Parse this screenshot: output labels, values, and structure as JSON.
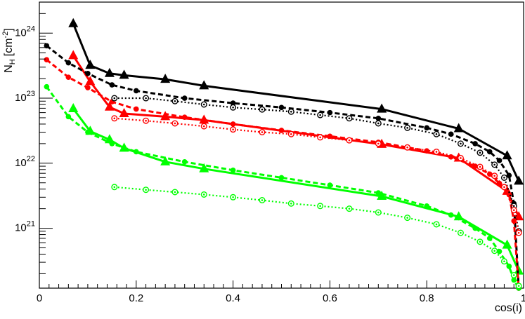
{
  "chart_data": {
    "type": "line",
    "xlabel": "cos(i)",
    "ylabel_main": "N",
    "ylabel_sub": "H",
    "ylabel_unit_pre": "[cm",
    "ylabel_unit_exp": "-2",
    "ylabel_unit_post": "]",
    "xlim": [
      0,
      1.0
    ],
    "ylim": [
      1.2e+20,
      3e+24
    ],
    "yscale": "log",
    "grid": false,
    "x_ticks": [
      {
        "value": 0,
        "label": "0"
      },
      {
        "value": 0.2,
        "label": "0.2"
      },
      {
        "value": 0.4,
        "label": "0.4"
      },
      {
        "value": 0.6,
        "label": "0.6"
      },
      {
        "value": 0.8,
        "label": "0.8"
      },
      {
        "value": 1.0,
        "label": "1"
      }
    ],
    "y_ticks": [
      {
        "value": 1e+21,
        "base": "10",
        "exp": "21"
      },
      {
        "value": 1e+22,
        "base": "10",
        "exp": "22"
      },
      {
        "value": 1e+23,
        "base": "10",
        "exp": "23"
      },
      {
        "value": 1e+24,
        "base": "10",
        "exp": "24"
      }
    ],
    "series": [
      {
        "color": "#000000",
        "line": "solid",
        "marker": "triangle",
        "x": [
          0.07,
          0.105,
          0.145,
          0.175,
          0.26,
          0.34,
          0.707,
          0.866,
          0.966,
          0.99
        ],
        "y": [
          1.4e+24,
          3.2e+23,
          2.4e+23,
          2.25e+23,
          1.95e+23,
          1.55e+23,
          6.8e+22,
          3.4e+22,
          1.3e+22,
          5.3e+21
        ]
      },
      {
        "color": "#ff0000",
        "line": "solid",
        "marker": "triangle",
        "x": [
          0.07,
          0.105,
          0.145,
          0.175,
          0.26,
          0.34,
          0.707,
          0.866,
          0.966,
          0.99
        ],
        "y": [
          4.5e+23,
          1.8e+23,
          7.3e+22,
          5.8e+22,
          5.2e+22,
          4.6e+22,
          1.95e+22,
          1.2e+22,
          3.7e+21,
          1.5e+21
        ]
      },
      {
        "color": "#00ff00",
        "line": "solid",
        "marker": "triangle",
        "x": [
          0.07,
          0.105,
          0.145,
          0.175,
          0.26,
          0.34,
          0.707,
          0.866,
          0.966,
          0.99
        ],
        "y": [
          6.9e+22,
          3.1e+22,
          2.3e+22,
          1.7e+22,
          1.05e+22,
          8.2e+21,
          3.1e+21,
          1.5e+21,
          5.5e+20,
          2.2e+20
        ]
      },
      {
        "color": "#000000",
        "line": "dashed",
        "marker": "dot",
        "x": [
          0.015,
          0.06,
          0.1,
          0.15,
          0.2,
          0.3,
          0.4,
          0.5,
          0.6,
          0.7,
          0.8,
          0.85,
          0.9,
          0.93,
          0.95,
          0.97,
          0.98,
          0.99
        ],
        "y": [
          6.4e+23,
          3.5e+23,
          2.4e+23,
          1.6e+23,
          1.3e+23,
          1e+23,
          8.4e+22,
          7.2e+22,
          6e+22,
          4.9e+22,
          3.5e+22,
          2.8e+22,
          2e+22,
          1.5e+22,
          1.1e+22,
          6.5e+21,
          2.4e+21,
          1.2e+20
        ]
      },
      {
        "color": "#ff0000",
        "line": "dashed",
        "marker": "dot",
        "x": [
          0.015,
          0.06,
          0.1,
          0.15,
          0.2,
          0.3,
          0.4,
          0.5,
          0.6,
          0.7,
          0.8,
          0.85,
          0.9,
          0.93,
          0.95,
          0.97,
          0.98,
          0.99
        ],
        "y": [
          3.9e+23,
          2.1e+23,
          1.45e+23,
          8.8e+22,
          6.8e+22,
          5.1e+22,
          4e+22,
          3.2e+22,
          2.6e+22,
          2.1e+22,
          1.55e+22,
          1.25e+22,
          9e+21,
          6.8e+21,
          4.9e+21,
          3.3e+21,
          1.3e+21,
          1.2e+20
        ]
      },
      {
        "color": "#00ff00",
        "line": "dashed",
        "marker": "dot",
        "x": [
          0.015,
          0.06,
          0.1,
          0.15,
          0.2,
          0.3,
          0.4,
          0.5,
          0.6,
          0.7,
          0.8,
          0.85,
          0.9,
          0.93,
          0.95,
          0.97,
          0.98,
          0.99
        ],
        "y": [
          1.5e+23,
          5.2e+22,
          3e+22,
          2e+22,
          1.5e+22,
          1.05e+22,
          7.8e+21,
          6e+21,
          4.6e+21,
          3.5e+21,
          2.2e+21,
          1.6e+21,
          1e+21,
          7e+20,
          4.4e+20,
          2.6e+20,
          1.6e+20,
          1.2e+20
        ]
      },
      {
        "color": "#000000",
        "line": "dotted",
        "marker": "open-circle",
        "x": [
          0.155,
          0.22,
          0.28,
          0.34,
          0.4,
          0.46,
          0.52,
          0.58,
          0.64,
          0.7,
          0.76,
          0.82,
          0.87,
          0.91,
          0.94,
          0.96,
          0.98,
          0.99
        ],
        "y": [
          1e+23,
          1e+23,
          9e+22,
          8e+22,
          7.2e+22,
          6.7e+22,
          6.2e+22,
          5.5e+22,
          4.9e+22,
          4.1e+22,
          3.5e+22,
          2.8e+22,
          2e+22,
          1.45e+22,
          9.5e+21,
          6e+21,
          2.2e+21,
          9e+20
        ]
      },
      {
        "color": "#ff0000",
        "line": "dotted",
        "marker": "open-circle",
        "x": [
          0.155,
          0.22,
          0.28,
          0.34,
          0.4,
          0.46,
          0.52,
          0.58,
          0.64,
          0.7,
          0.76,
          0.82,
          0.87,
          0.91,
          0.94,
          0.96,
          0.98,
          0.99
        ],
        "y": [
          4.9e+22,
          4.5e+22,
          4.1e+22,
          3.7e+22,
          3.3e+22,
          3e+22,
          2.8e+22,
          2.5e+22,
          2.25e+22,
          2e+22,
          1.75e+22,
          1.5e+22,
          1.2e+22,
          8.8e+21,
          6.4e+21,
          4.3e+21,
          1.9e+21,
          8.5e+20
        ]
      },
      {
        "color": "#00ff00",
        "line": "dotted",
        "marker": "open-circle",
        "x": [
          0.155,
          0.22,
          0.28,
          0.34,
          0.4,
          0.46,
          0.52,
          0.58,
          0.64,
          0.7,
          0.76,
          0.82,
          0.87,
          0.91,
          0.94,
          0.96,
          0.98,
          0.99
        ],
        "y": [
          4.3e+21,
          3.9e+21,
          3.6e+21,
          3.3e+21,
          3e+21,
          2.7e+21,
          2.4e+21,
          2.2e+21,
          2e+21,
          1.75e+21,
          1.45e+21,
          1.15e+21,
          8.5e+20,
          6.2e+20,
          4.5e+20,
          3.1e+20,
          1.9e+20,
          1.3e+20
        ]
      }
    ]
  }
}
